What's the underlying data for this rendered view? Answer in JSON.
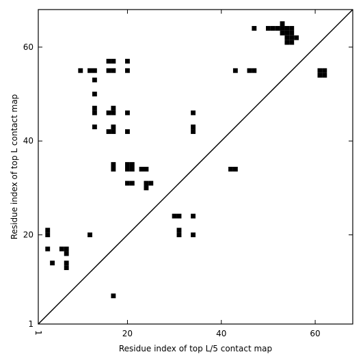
{
  "chart_data": {
    "type": "heatmap",
    "xlabel": "Residue index of top L/5 contact map",
    "ylabel": "Residue index of top L contact map",
    "xlim": [
      1,
      68
    ],
    "ylim": [
      1,
      68
    ],
    "x_ticks": [
      {
        "value": 1,
        "label": "1"
      },
      {
        "value": 20,
        "label": "20"
      },
      {
        "value": 40,
        "label": "40"
      },
      {
        "value": 60,
        "label": "60"
      }
    ],
    "y_ticks": [
      {
        "value": 1,
        "label": "1"
      },
      {
        "value": 20,
        "label": "20"
      },
      {
        "value": 40,
        "label": "40"
      },
      {
        "value": 60,
        "label": "60"
      }
    ],
    "diagonal": true,
    "grid": false,
    "colors": {
      "cell": "#000000",
      "background": "#ffffff",
      "line": "#000000"
    },
    "upper_triangle_contacts": [
      [
        47,
        64
      ],
      [
        50,
        64
      ],
      [
        51,
        64
      ],
      [
        52,
        64
      ],
      [
        53,
        64
      ],
      [
        53,
        65
      ],
      [
        54,
        64
      ],
      [
        55,
        64
      ],
      [
        53,
        63
      ],
      [
        54,
        63
      ],
      [
        55,
        63
      ],
      [
        54,
        62
      ],
      [
        55,
        62
      ],
      [
        56,
        62
      ],
      [
        54,
        61
      ],
      [
        55,
        61
      ],
      [
        43,
        55
      ],
      [
        46,
        55
      ],
      [
        47,
        55
      ],
      [
        61,
        55
      ],
      [
        62,
        55
      ],
      [
        61,
        54
      ],
      [
        62,
        54
      ]
    ],
    "lower_triangle_contacts": [
      [
        16,
        57
      ],
      [
        17,
        57
      ],
      [
        20,
        57
      ],
      [
        10,
        55
      ],
      [
        12,
        55
      ],
      [
        13,
        55
      ],
      [
        16,
        55
      ],
      [
        17,
        55
      ],
      [
        20,
        55
      ],
      [
        13,
        53
      ],
      [
        13,
        50
      ],
      [
        13,
        47
      ],
      [
        13,
        46
      ],
      [
        17,
        47
      ],
      [
        16,
        46
      ],
      [
        17,
        46
      ],
      [
        20,
        46
      ],
      [
        34,
        46
      ],
      [
        13,
        43
      ],
      [
        17,
        43
      ],
      [
        34,
        43
      ],
      [
        16,
        42
      ],
      [
        17,
        42
      ],
      [
        20,
        42
      ],
      [
        34,
        42
      ],
      [
        17,
        35
      ],
      [
        20,
        35
      ],
      [
        21,
        35
      ],
      [
        17,
        34
      ],
      [
        20,
        34
      ],
      [
        21,
        34
      ],
      [
        23,
        34
      ],
      [
        24,
        34
      ],
      [
        42,
        34
      ],
      [
        43,
        34
      ],
      [
        20,
        31
      ],
      [
        21,
        31
      ],
      [
        24,
        31
      ],
      [
        25,
        31
      ],
      [
        24,
        30
      ],
      [
        30,
        24
      ],
      [
        31,
        24
      ],
      [
        34,
        24
      ],
      [
        31,
        21
      ],
      [
        31,
        20
      ],
      [
        34,
        20
      ],
      [
        3,
        21
      ],
      [
        3,
        20
      ],
      [
        12,
        20
      ],
      [
        3,
        17
      ],
      [
        6,
        17
      ],
      [
        7,
        17
      ],
      [
        7,
        16
      ],
      [
        4,
        14
      ],
      [
        7,
        14
      ],
      [
        7,
        13
      ],
      [
        17,
        7
      ]
    ]
  }
}
